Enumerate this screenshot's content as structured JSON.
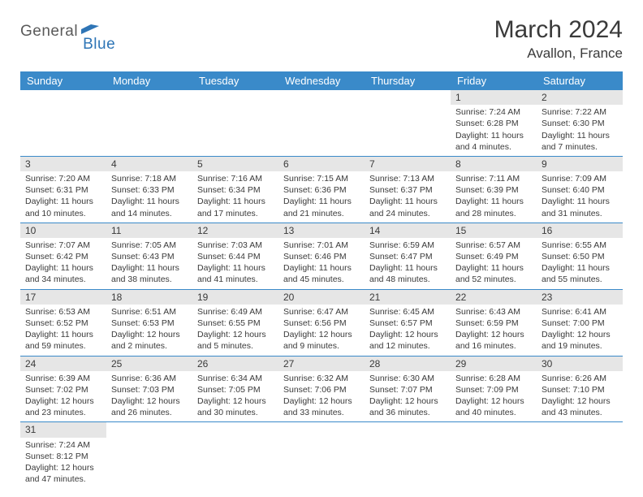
{
  "brand": {
    "word1": "General",
    "word2": "Blue"
  },
  "title": "March 2024",
  "location": "Avallon, France",
  "colors": {
    "header_bg": "#3a8ac9",
    "header_text": "#ffffff",
    "daynum_bg": "#e6e6e6",
    "border": "#3a8ac9",
    "logo_gray": "#5a5a5a",
    "logo_blue": "#2e75b6"
  },
  "dayHeaders": [
    "Sunday",
    "Monday",
    "Tuesday",
    "Wednesday",
    "Thursday",
    "Friday",
    "Saturday"
  ],
  "weeks": [
    [
      {
        "empty": true
      },
      {
        "empty": true
      },
      {
        "empty": true
      },
      {
        "empty": true
      },
      {
        "empty": true
      },
      {
        "n": "1",
        "sr": "Sunrise: 7:24 AM",
        "ss": "Sunset: 6:28 PM",
        "dl": "Daylight: 11 hours and 4 minutes."
      },
      {
        "n": "2",
        "sr": "Sunrise: 7:22 AM",
        "ss": "Sunset: 6:30 PM",
        "dl": "Daylight: 11 hours and 7 minutes."
      }
    ],
    [
      {
        "n": "3",
        "sr": "Sunrise: 7:20 AM",
        "ss": "Sunset: 6:31 PM",
        "dl": "Daylight: 11 hours and 10 minutes."
      },
      {
        "n": "4",
        "sr": "Sunrise: 7:18 AM",
        "ss": "Sunset: 6:33 PM",
        "dl": "Daylight: 11 hours and 14 minutes."
      },
      {
        "n": "5",
        "sr": "Sunrise: 7:16 AM",
        "ss": "Sunset: 6:34 PM",
        "dl": "Daylight: 11 hours and 17 minutes."
      },
      {
        "n": "6",
        "sr": "Sunrise: 7:15 AM",
        "ss": "Sunset: 6:36 PM",
        "dl": "Daylight: 11 hours and 21 minutes."
      },
      {
        "n": "7",
        "sr": "Sunrise: 7:13 AM",
        "ss": "Sunset: 6:37 PM",
        "dl": "Daylight: 11 hours and 24 minutes."
      },
      {
        "n": "8",
        "sr": "Sunrise: 7:11 AM",
        "ss": "Sunset: 6:39 PM",
        "dl": "Daylight: 11 hours and 28 minutes."
      },
      {
        "n": "9",
        "sr": "Sunrise: 7:09 AM",
        "ss": "Sunset: 6:40 PM",
        "dl": "Daylight: 11 hours and 31 minutes."
      }
    ],
    [
      {
        "n": "10",
        "sr": "Sunrise: 7:07 AM",
        "ss": "Sunset: 6:42 PM",
        "dl": "Daylight: 11 hours and 34 minutes."
      },
      {
        "n": "11",
        "sr": "Sunrise: 7:05 AM",
        "ss": "Sunset: 6:43 PM",
        "dl": "Daylight: 11 hours and 38 minutes."
      },
      {
        "n": "12",
        "sr": "Sunrise: 7:03 AM",
        "ss": "Sunset: 6:44 PM",
        "dl": "Daylight: 11 hours and 41 minutes."
      },
      {
        "n": "13",
        "sr": "Sunrise: 7:01 AM",
        "ss": "Sunset: 6:46 PM",
        "dl": "Daylight: 11 hours and 45 minutes."
      },
      {
        "n": "14",
        "sr": "Sunrise: 6:59 AM",
        "ss": "Sunset: 6:47 PM",
        "dl": "Daylight: 11 hours and 48 minutes."
      },
      {
        "n": "15",
        "sr": "Sunrise: 6:57 AM",
        "ss": "Sunset: 6:49 PM",
        "dl": "Daylight: 11 hours and 52 minutes."
      },
      {
        "n": "16",
        "sr": "Sunrise: 6:55 AM",
        "ss": "Sunset: 6:50 PM",
        "dl": "Daylight: 11 hours and 55 minutes."
      }
    ],
    [
      {
        "n": "17",
        "sr": "Sunrise: 6:53 AM",
        "ss": "Sunset: 6:52 PM",
        "dl": "Daylight: 11 hours and 59 minutes."
      },
      {
        "n": "18",
        "sr": "Sunrise: 6:51 AM",
        "ss": "Sunset: 6:53 PM",
        "dl": "Daylight: 12 hours and 2 minutes."
      },
      {
        "n": "19",
        "sr": "Sunrise: 6:49 AM",
        "ss": "Sunset: 6:55 PM",
        "dl": "Daylight: 12 hours and 5 minutes."
      },
      {
        "n": "20",
        "sr": "Sunrise: 6:47 AM",
        "ss": "Sunset: 6:56 PM",
        "dl": "Daylight: 12 hours and 9 minutes."
      },
      {
        "n": "21",
        "sr": "Sunrise: 6:45 AM",
        "ss": "Sunset: 6:57 PM",
        "dl": "Daylight: 12 hours and 12 minutes."
      },
      {
        "n": "22",
        "sr": "Sunrise: 6:43 AM",
        "ss": "Sunset: 6:59 PM",
        "dl": "Daylight: 12 hours and 16 minutes."
      },
      {
        "n": "23",
        "sr": "Sunrise: 6:41 AM",
        "ss": "Sunset: 7:00 PM",
        "dl": "Daylight: 12 hours and 19 minutes."
      }
    ],
    [
      {
        "n": "24",
        "sr": "Sunrise: 6:39 AM",
        "ss": "Sunset: 7:02 PM",
        "dl": "Daylight: 12 hours and 23 minutes."
      },
      {
        "n": "25",
        "sr": "Sunrise: 6:36 AM",
        "ss": "Sunset: 7:03 PM",
        "dl": "Daylight: 12 hours and 26 minutes."
      },
      {
        "n": "26",
        "sr": "Sunrise: 6:34 AM",
        "ss": "Sunset: 7:05 PM",
        "dl": "Daylight: 12 hours and 30 minutes."
      },
      {
        "n": "27",
        "sr": "Sunrise: 6:32 AM",
        "ss": "Sunset: 7:06 PM",
        "dl": "Daylight: 12 hours and 33 minutes."
      },
      {
        "n": "28",
        "sr": "Sunrise: 6:30 AM",
        "ss": "Sunset: 7:07 PM",
        "dl": "Daylight: 12 hours and 36 minutes."
      },
      {
        "n": "29",
        "sr": "Sunrise: 6:28 AM",
        "ss": "Sunset: 7:09 PM",
        "dl": "Daylight: 12 hours and 40 minutes."
      },
      {
        "n": "30",
        "sr": "Sunrise: 6:26 AM",
        "ss": "Sunset: 7:10 PM",
        "dl": "Daylight: 12 hours and 43 minutes."
      }
    ],
    [
      {
        "n": "31",
        "sr": "Sunrise: 7:24 AM",
        "ss": "Sunset: 8:12 PM",
        "dl": "Daylight: 12 hours and 47 minutes."
      },
      {
        "empty": true
      },
      {
        "empty": true
      },
      {
        "empty": true
      },
      {
        "empty": true
      },
      {
        "empty": true
      },
      {
        "empty": true
      }
    ]
  ]
}
